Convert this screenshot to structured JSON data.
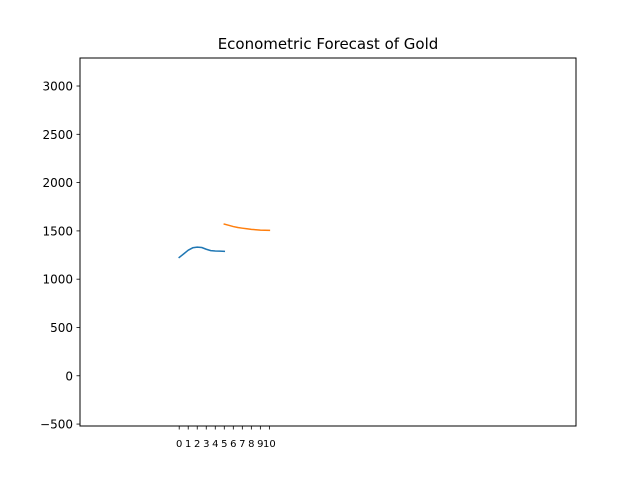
{
  "chart_data": {
    "type": "line",
    "title": "Econometric Forecast of Gold",
    "xlabel": "",
    "ylabel": "",
    "ylim": [
      -520,
      3290
    ],
    "y_ticks": [
      -500,
      0,
      500,
      1000,
      1500,
      2000,
      2500,
      3000
    ],
    "xlim": [
      -11,
      44
    ],
    "x_ticks": [
      0,
      1,
      2,
      3,
      4,
      5,
      6,
      7,
      8,
      9,
      10
    ],
    "grid": false,
    "legend": "none",
    "series": [
      {
        "color": "#1f77b4",
        "x": [
          0,
          0.5,
          1,
          1.5,
          2,
          2.5,
          3,
          3.5,
          4,
          4.5,
          5
        ],
        "y": [
          1225,
          1262,
          1300,
          1325,
          1332,
          1328,
          1310,
          1296,
          1292,
          1290,
          1288
        ]
      },
      {
        "color": "#ff7f0e",
        "x": [
          5,
          5.5,
          6,
          6.5,
          7,
          7.5,
          8,
          8.5,
          9,
          9.5,
          10
        ],
        "y": [
          1570,
          1558,
          1545,
          1535,
          1528,
          1522,
          1516,
          1512,
          1508,
          1506,
          1505
        ]
      }
    ]
  }
}
